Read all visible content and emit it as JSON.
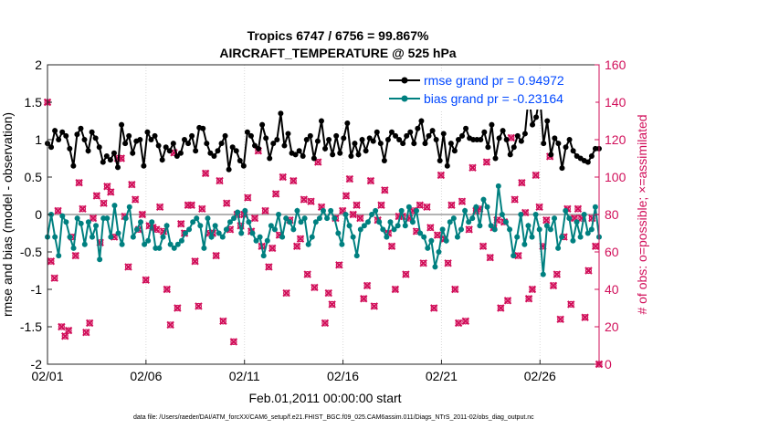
{
  "chart_data": {
    "type": "line",
    "title": [
      "Tropics 6747 / 6756 = 99.867%",
      "AIRCRAFT_TEMPERATURE @ 525 hPa"
    ],
    "xlabel": "Feb.01,2011 00:00:00 start",
    "ylabel_left": "rmse and bias (model - observation)",
    "ylabel_right": "# of obs: o=possible; ×=assimilated",
    "footnote": "data file: /Users/raeder/DAI/ATM_forcXX/CAM6_setup/f.e21.FHIST_BGC.f09_025.CAM6assim.011/Diags_NTrS_2011-02/obs_diag_output.nc",
    "x_ticks": [
      {
        "v": 0,
        "label": "02/01"
      },
      {
        "v": 5,
        "label": "02/06"
      },
      {
        "v": 10,
        "label": "02/11"
      },
      {
        "v": 15,
        "label": "02/16"
      },
      {
        "v": 20,
        "label": "02/21"
      },
      {
        "v": 25,
        "label": "02/26"
      }
    ],
    "xlim": [
      0,
      28
    ],
    "ylim_left": [
      -2,
      2
    ],
    "y_ticks_left": [
      "-2",
      "-1.5",
      "-1",
      "-0.5",
      "0",
      "0.5",
      "1",
      "1.5",
      "2"
    ],
    "ylim_right": [
      0,
      160
    ],
    "y_ticks_right": [
      "0",
      "20",
      "40",
      "60",
      "80",
      "100",
      "120",
      "140",
      "160"
    ],
    "legend": [
      "rmse grand pr = 0.94972",
      "bias grand pr = -0.23164"
    ],
    "colors": {
      "rmse": "#000000",
      "bias": "#008080",
      "obs": "#d10f5a",
      "zero_line": "#b3b3b3",
      "legend_text": "#0047ff",
      "right_axis": "#d10f5a"
    },
    "series": [
      {
        "name": "rmse",
        "values": [
          0.95,
          0.9,
          1.12,
          1.0,
          1.1,
          1.05,
          0.88,
          0.65,
          1.07,
          1.15,
          1.0,
          0.85,
          1.1,
          1.02,
          0.9,
          0.7,
          0.78,
          0.73,
          0.82,
          0.63,
          1.2,
          0.95,
          1.05,
          0.82,
          0.98,
          1.0,
          0.65,
          1.1,
          1.0,
          1.05,
          0.92,
          0.73,
          0.9,
          0.85,
          0.95,
          0.78,
          0.82,
          1.0,
          0.95,
          1.05,
          0.85,
          1.16,
          1.15,
          0.95,
          0.82,
          0.78,
          0.85,
          0.95,
          1.05,
          0.6,
          0.9,
          0.85,
          0.72,
          0.65,
          1.1,
          1.05,
          0.92,
          0.88,
          1.2,
          1.02,
          0.75,
          0.95,
          1.0,
          1.35,
          0.92,
          1.08,
          0.82,
          0.8,
          0.85,
          0.78,
          1.0,
          1.05,
          0.75,
          0.98,
          1.25,
          0.88,
          1.0,
          0.8,
          1.05,
          0.82,
          1.02,
          1.22,
          0.78,
          0.95,
          0.8,
          1.0,
          0.85,
          1.02,
          0.98,
          1.1,
          0.95,
          0.72,
          1.0,
          1.1,
          1.05,
          1.0,
          0.95,
          1.05,
          1.1,
          0.95,
          1.15,
          1.25,
          0.95,
          1.05,
          1.12,
          1.0,
          0.72,
          1.08,
          0.65,
          0.95,
          0.85,
          1.0,
          1.05,
          1.15,
          1.02,
          1.0,
          1.0,
          1.0,
          1.1,
          0.9,
          1.2,
          0.75,
          1.02,
          1.12,
          1.0,
          0.8,
          0.9,
          1.05,
          0.98,
          1.08,
          1.6,
          1.2,
          1.3,
          1.6,
          0.95,
          1.25,
          0.8,
          1.02,
          0.95,
          0.62,
          0.9,
          1.0,
          0.85,
          0.78,
          0.75,
          0.72,
          0.7,
          0.78,
          0.88,
          0.88
        ],
        "std_dev_note": ""
      },
      {
        "name": "bias",
        "values": [
          -0.3,
          0.0,
          -0.3,
          -0.55,
          -0.02,
          -0.1,
          -0.3,
          -0.45,
          -0.05,
          -0.12,
          -0.4,
          -0.1,
          -0.3,
          -0.15,
          -0.6,
          -0.05,
          -0.05,
          -0.3,
          0.12,
          -0.25,
          -0.4,
          -0.05,
          0.1,
          -0.3,
          -0.2,
          -0.1,
          -0.4,
          -0.35,
          -0.1,
          -0.45,
          -0.45,
          -0.3,
          -0.15,
          -0.4,
          -0.45,
          -0.4,
          -0.35,
          -0.25,
          -0.2,
          -0.1,
          -0.05,
          -0.15,
          -0.45,
          -0.05,
          -0.3,
          -0.15,
          -0.25,
          -0.3,
          -0.2,
          -0.1,
          -0.05,
          0.03,
          -0.25,
          0.05,
          -0.1,
          -0.25,
          -0.35,
          -0.3,
          -0.55,
          -0.35,
          -0.15,
          -0.2,
          0.0,
          -0.3,
          -0.05,
          -0.1,
          -0.2,
          0.05,
          -0.1,
          -0.05,
          -0.4,
          -0.3,
          -0.1,
          -0.05,
          0.05,
          -0.05,
          0.05,
          -0.05,
          -0.25,
          -0.4,
          0.0,
          -0.15,
          -0.3,
          -0.55,
          -0.2,
          -0.15,
          -0.1,
          0.0,
          0.05,
          -0.1,
          -0.2,
          -0.3,
          -0.1,
          -0.2,
          -0.15,
          0.05,
          -0.15,
          0.1,
          -0.1,
          0.05,
          -0.25,
          -0.3,
          -0.45,
          -0.35,
          -0.7,
          -0.5,
          -0.2,
          -0.35,
          -0.1,
          -0.05,
          -0.3,
          -0.2,
          0.05,
          -0.1,
          -0.05,
          0.1,
          -0.15,
          0.2,
          0.1,
          -0.15,
          -0.2,
          0.38,
          0.0,
          -0.1,
          -0.2,
          -0.55,
          -0.3,
          0.0,
          -0.4,
          -0.15,
          -0.3,
          0.0,
          -0.2,
          -0.8,
          -0.15,
          -0.2,
          -0.05,
          -0.45,
          -0.3,
          0.05,
          -0.05,
          -0.35,
          -0.1,
          -0.3,
          0.0,
          -0.25,
          -0.2,
          0.1,
          -0.3
        ]
      },
      {
        "name": "obs_possible",
        "values": [
          140,
          55,
          46,
          82,
          20,
          15,
          18,
          68,
          58,
          97,
          83,
          17,
          22,
          78,
          90,
          65,
          86,
          95,
          92,
          68,
          110,
          110,
          79,
          52,
          96,
          88,
          72,
          80,
          45,
          74,
          73,
          72,
          84,
          71,
          40,
          21,
          113,
          30,
          75,
          70,
          85,
          85,
          55,
          31,
          83,
          102,
          70,
          70,
          58,
          98,
          23,
          86,
          72,
          12,
          80,
          74,
          80,
          89,
          71,
          78,
          114,
          63,
          82,
          52,
          62,
          91,
          69,
          100,
          38,
          77,
          98,
          63,
          67,
          88,
          48,
          87,
          41,
          108,
          84,
          22,
          38,
          32,
          78,
          53,
          82,
          90,
          99,
          80,
          85,
          78,
          35,
          42,
          98,
          31,
          77,
          85,
          93,
          70,
          63,
          40,
          79,
          79,
          48,
          78,
          82,
          71,
          85,
          54,
          84,
          73,
          30,
          69,
          101,
          67,
          54,
          85,
          40,
          22,
          87,
          23,
          72,
          105,
          82,
          83,
          63,
          108,
          57,
          73,
          77,
          30,
          76,
          34,
          121,
          88,
          58,
          97,
          81,
          35,
          40,
          101,
          84,
          63,
          77,
          111,
          42,
          48,
          24,
          68,
          83,
          32,
          78,
          83,
          78,
          25,
          50,
          78,
          63,
          0
        ]
      },
      {
        "name": "obs_assimilated",
        "values": [
          140,
          55,
          46,
          82,
          20,
          15,
          18,
          68,
          58,
          97,
          83,
          17,
          22,
          78,
          90,
          65,
          86,
          95,
          92,
          68,
          110,
          110,
          79,
          52,
          96,
          88,
          72,
          80,
          45,
          74,
          73,
          72,
          84,
          71,
          40,
          21,
          113,
          30,
          75,
          70,
          85,
          85,
          55,
          31,
          83,
          102,
          70,
          70,
          58,
          98,
          23,
          86,
          72,
          12,
          80,
          74,
          80,
          89,
          71,
          78,
          114,
          63,
          82,
          52,
          62,
          91,
          69,
          100,
          38,
          77,
          98,
          63,
          67,
          88,
          48,
          87,
          41,
          108,
          84,
          22,
          38,
          32,
          78,
          53,
          82,
          90,
          99,
          80,
          85,
          78,
          35,
          42,
          98,
          31,
          77,
          85,
          93,
          70,
          63,
          40,
          79,
          79,
          48,
          78,
          82,
          71,
          85,
          54,
          84,
          73,
          30,
          69,
          101,
          67,
          54,
          85,
          40,
          22,
          87,
          23,
          72,
          105,
          82,
          83,
          63,
          108,
          57,
          73,
          77,
          30,
          76,
          34,
          121,
          88,
          58,
          97,
          81,
          35,
          40,
          101,
          84,
          63,
          77,
          111,
          42,
          48,
          24,
          68,
          83,
          32,
          78,
          83,
          78,
          25,
          50,
          78,
          63,
          0
        ]
      }
    ]
  }
}
